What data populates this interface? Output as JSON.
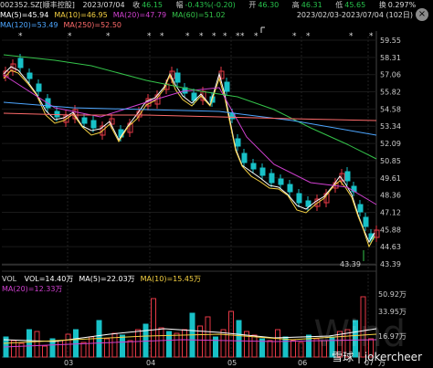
{
  "header": {
    "ticker": "002352.SZ[顺丰控股]",
    "date": "2023/07/04",
    "close_label": "收",
    "close_value": "46.15",
    "change_label": "幅",
    "change_value": "-0.43%(-0.20)",
    "open_label": "开",
    "open_value": "46.30",
    "high_label": "高",
    "high_value": "46.31",
    "low_label": "低",
    "low_value": "45.65",
    "amp_label": "换",
    "amp_value": "0.297%",
    "range": "2023/02/03-2023/07/04 (102日)",
    "close_symbol": "×"
  },
  "ma_row1": [
    {
      "label": "MA(5)=45.94",
      "color": "#ffffff"
    },
    {
      "label": "MA(10)=46.95",
      "color": "#f5d142"
    },
    {
      "label": "MA(20)=47.79",
      "color": "#d040d0"
    },
    {
      "label": "MA(60)=51.02",
      "color": "#34c34a"
    }
  ],
  "ma_row2": [
    {
      "label": "MA(120)=53.49",
      "color": "#4da6ff"
    },
    {
      "label": "MA(250)=52.50",
      "color": "#ff6b6b"
    }
  ],
  "y_axis_labels": [
    "59.55",
    "58.31",
    "57.06",
    "55.82",
    "54.58",
    "53.34",
    "52.09",
    "50.85",
    "49.61",
    "48.36",
    "47.12",
    "45.88",
    "44.63",
    "43.39"
  ],
  "x_axis_labels": [
    "03",
    "04",
    "05",
    "06",
    "07"
  ],
  "low_marker": "43.39",
  "stars": "*",
  "volume": {
    "vol_label": "VOL",
    "items": [
      {
        "label": "VOL=14.40万",
        "color": "#ffffff"
      },
      {
        "label": "MA(5)=22.03万",
        "color": "#ffffff"
      },
      {
        "label": "MA(10)=15.45万",
        "color": "#f5d142"
      }
    ],
    "ma20": {
      "label": "MA(20)=12.33万",
      "color": "#d040d0"
    },
    "axis_labels": [
      "50.92万",
      "33.95万",
      "16.97万",
      "万"
    ]
  },
  "watermark": "雪球 | jokercheer",
  "ghost_text": "Wind"
}
